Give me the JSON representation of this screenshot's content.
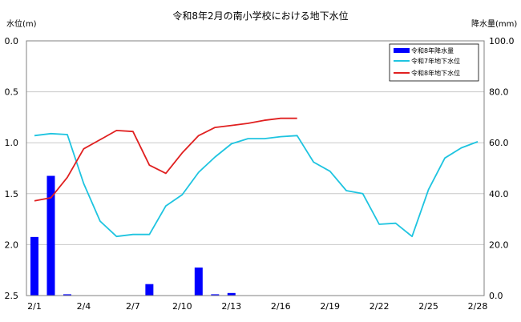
{
  "chart_data": {
    "type": "bar+line",
    "title": "令和8年2月の南小学校における地下水位",
    "y_left": {
      "label": "水位(m)",
      "range": [
        0,
        2.5
      ],
      "inverted": true,
      "ticks": [
        "0.0",
        "0.5",
        "1.0",
        "1.5",
        "2.0",
        "2.5"
      ]
    },
    "y_right": {
      "label": "降水量(mm)",
      "range": [
        0,
        100
      ],
      "ticks": [
        "0.0",
        "20.0",
        "40.0",
        "60.0",
        "80.0",
        "100.0"
      ]
    },
    "x": {
      "days": 28,
      "ticks": [
        "2/1",
        "2/4",
        "2/7",
        "2/10",
        "2/13",
        "2/16",
        "2/19",
        "2/22",
        "2/25",
        "2/28"
      ]
    },
    "grid": true,
    "legend_position": "top-right",
    "colors": {
      "bars": "#0000ff",
      "line_r7": "#1ec4e0",
      "line_r8": "#e02020",
      "grid": "#c8c8c8"
    },
    "bars": {
      "name": "令和8年降水量",
      "values": [
        23,
        47,
        0.5,
        0,
        0,
        0,
        0,
        4.5,
        0,
        0,
        11,
        0.5,
        1,
        0,
        0,
        0,
        0,
        0,
        0,
        0,
        0,
        0,
        0,
        0,
        0,
        0,
        0,
        0
      ]
    },
    "series": [
      {
        "name": "令和7年地下水位",
        "values": [
          0.93,
          0.91,
          0.92,
          1.4,
          1.77,
          1.92,
          1.9,
          1.9,
          1.62,
          1.51,
          1.29,
          1.14,
          1.01,
          0.96,
          0.96,
          0.94,
          0.93,
          1.19,
          1.28,
          1.47,
          1.5,
          1.8,
          1.79,
          1.92,
          1.46,
          1.15,
          1.05,
          0.99
        ]
      },
      {
        "name": "令和8年地下水位",
        "values": [
          1.57,
          1.54,
          1.34,
          1.06,
          0.97,
          0.88,
          0.89,
          1.22,
          1.3,
          1.1,
          0.93,
          0.85,
          0.83,
          0.81,
          0.78,
          0.76,
          0.76,
          null,
          null,
          null,
          null,
          null,
          null,
          null,
          null,
          null,
          null,
          null
        ]
      }
    ]
  }
}
